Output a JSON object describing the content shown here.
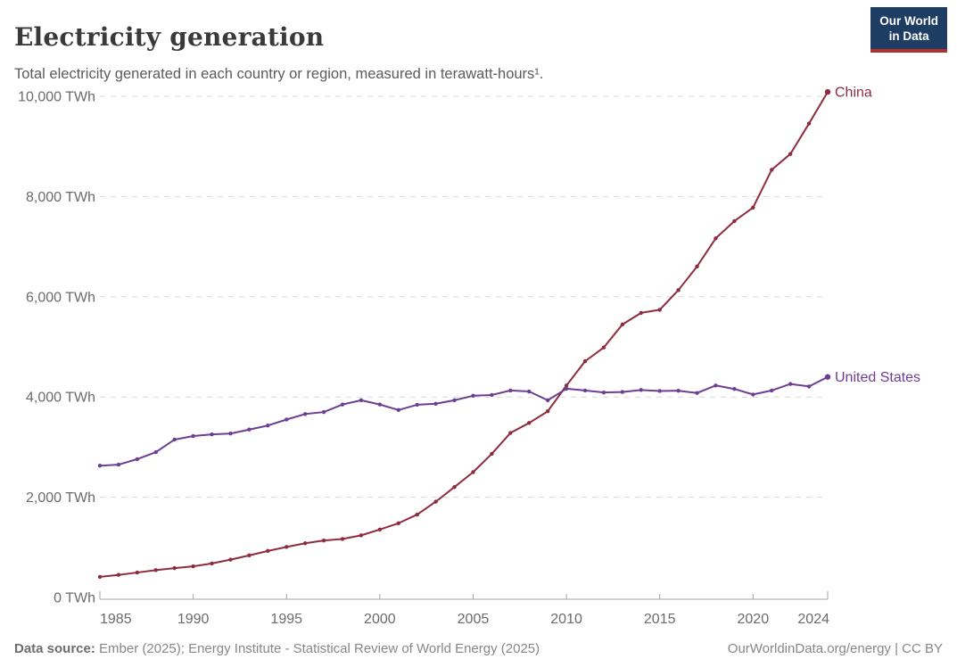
{
  "header": {
    "title": "Electricity generation",
    "subtitle": "Total electricity generated in each country or region, measured in terawatt-hours¹."
  },
  "logo": {
    "line1": "Our World",
    "line2": "in Data",
    "bg_color": "#1d3d63",
    "accent_color": "#b0312e"
  },
  "footer": {
    "source_label": "Data source:",
    "source_text": " Ember (2025); Energy Institute - Statistical Review of World Energy (2025)",
    "attribution": "OurWorldinData.org/energy | CC BY"
  },
  "chart_data": {
    "type": "line",
    "title": "Electricity generation",
    "xlabel": "",
    "ylabel": "",
    "unit": "TWh",
    "xlim": [
      1985,
      2024
    ],
    "ylim": [
      0,
      10000
    ],
    "grid": "horizontal dashed",
    "grid_color": "#d9d9d9",
    "axis_color": "#a3a3a3",
    "tick_label_color": "#6b6b6b",
    "legend_position": "end-of-line labels",
    "x_ticks": [
      "1985",
      "1990",
      "1995",
      "2000",
      "2005",
      "2010",
      "2015",
      "2020",
      "2024"
    ],
    "y_ticks": [
      {
        "value": 0,
        "label": "0 TWh"
      },
      {
        "value": 2000,
        "label": "2,000 TWh"
      },
      {
        "value": 4000,
        "label": "4,000 TWh"
      },
      {
        "value": 6000,
        "label": "6,000 TWh"
      },
      {
        "value": 8000,
        "label": "8,000 TWh"
      },
      {
        "value": 10000,
        "label": "10,000 TWh"
      }
    ],
    "x": [
      1985,
      1986,
      1987,
      1988,
      1989,
      1990,
      1991,
      1992,
      1993,
      1994,
      1995,
      1996,
      1997,
      1998,
      1999,
      2000,
      2001,
      2002,
      2003,
      2004,
      2005,
      2006,
      2007,
      2008,
      2009,
      2010,
      2011,
      2012,
      2013,
      2014,
      2015,
      2016,
      2017,
      2018,
      2019,
      2020,
      2021,
      2022,
      2023,
      2024
    ],
    "series": [
      {
        "name": "China",
        "color": "#8E2C3F",
        "values": [
          411,
          450,
          497,
          545,
          585,
          621,
          678,
          754,
          839,
          928,
          1008,
          1081,
          1136,
          1167,
          1239,
          1356,
          1481,
          1654,
          1911,
          2203,
          2500,
          2866,
          3282,
          3482,
          3715,
          4228,
          4713,
          4988,
          5447,
          5678,
          5740,
          6133,
          6604,
          7166,
          7509,
          7779,
          8534,
          8849,
          9456,
          10087
        ]
      },
      {
        "name": "United States",
        "color": "#6D3E91",
        "values": [
          2630,
          2650,
          2760,
          2900,
          3150,
          3220,
          3255,
          3270,
          3350,
          3430,
          3550,
          3660,
          3700,
          3850,
          3935,
          3850,
          3740,
          3845,
          3865,
          3935,
          4025,
          4040,
          4130,
          4110,
          3935,
          4165,
          4130,
          4090,
          4100,
          4140,
          4120,
          4125,
          4080,
          4230,
          4160,
          4050,
          4130,
          4260,
          4210,
          4400
        ]
      }
    ]
  }
}
